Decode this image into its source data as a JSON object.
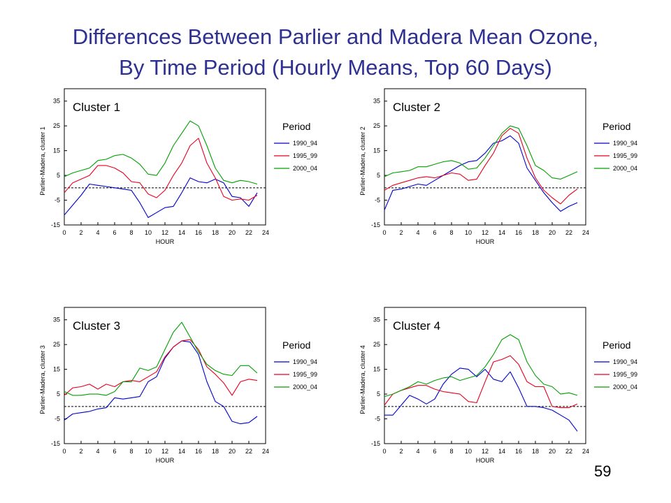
{
  "slide": {
    "title_line1": "Differences Between Parlier and Madera Mean Ozone,",
    "title_line2": "By Time Period (Hourly Means, Top 60 Days)",
    "page_number": "59"
  },
  "colors": {
    "1990_94": "#0000cc",
    "1995_99": "#e8001e",
    "2000_04": "#00a000",
    "reference_line": "#000000"
  },
  "chart_data": [
    {
      "type": "line",
      "title": "Cluster 1",
      "xlabel": "HOUR",
      "ylabel": "Parlier-Madera, cluster 1",
      "xlim": [
        0,
        24
      ],
      "ylim": [
        -15,
        40
      ],
      "xticks": [
        0,
        2,
        4,
        6,
        8,
        10,
        12,
        14,
        16,
        18,
        20,
        22,
        24
      ],
      "yticks": [
        -15,
        -5,
        5,
        15,
        25,
        35
      ],
      "reference_line_y": 0,
      "legend": {
        "title": "Period",
        "position": "right"
      },
      "x": [
        0,
        1,
        2,
        3,
        4,
        5,
        6,
        7,
        8,
        9,
        10,
        11,
        12,
        13,
        14,
        15,
        16,
        17,
        18,
        19,
        20,
        21,
        22,
        23
      ],
      "series": [
        {
          "name": "1990_94",
          "values": [
            -11,
            -7,
            -3,
            1.5,
            1,
            0.5,
            0,
            -0.5,
            -1,
            -6,
            -12,
            -10,
            -8,
            -7.5,
            -2,
            4,
            2.5,
            2,
            3.5,
            2,
            -3.5,
            -4,
            -7.5,
            -2
          ]
        },
        {
          "name": "1995_99",
          "values": [
            -2,
            2,
            3.5,
            5,
            9,
            9,
            8,
            6,
            2.5,
            2,
            -2.5,
            -4,
            -1,
            5,
            10,
            17,
            20,
            10,
            4,
            -3.5,
            -5,
            -4.5,
            -5,
            -3
          ]
        },
        {
          "name": "2000_04",
          "values": [
            4.5,
            6,
            7,
            8,
            11,
            11.5,
            13,
            13.5,
            12,
            9.5,
            5.5,
            5,
            10,
            17,
            22,
            27,
            25,
            17,
            8,
            3,
            2,
            3,
            2.5,
            1.5
          ]
        }
      ]
    },
    {
      "type": "line",
      "title": "Cluster 2",
      "xlabel": "HOUR",
      "ylabel": "Parlier-Madera, cluster 2",
      "xlim": [
        0,
        24
      ],
      "ylim": [
        -15,
        40
      ],
      "xticks": [
        0,
        2,
        4,
        6,
        8,
        10,
        12,
        14,
        16,
        18,
        20,
        22,
        24
      ],
      "yticks": [
        -15,
        -5,
        5,
        15,
        25,
        35
      ],
      "reference_line_y": 0,
      "legend": {
        "title": "Period",
        "position": "right"
      },
      "x": [
        0,
        1,
        2,
        3,
        4,
        5,
        6,
        7,
        8,
        9,
        10,
        11,
        12,
        13,
        14,
        15,
        16,
        17,
        18,
        19,
        20,
        21,
        22,
        23
      ],
      "series": [
        {
          "name": "1990_94",
          "values": [
            -9,
            -1,
            -0.5,
            0.5,
            1.5,
            1,
            3,
            5,
            7,
            9,
            10.5,
            11,
            14,
            18,
            19,
            21,
            18,
            8,
            3,
            -2,
            -6,
            -9.5,
            -7.5,
            -6
          ]
        },
        {
          "name": "1995_99",
          "values": [
            -1,
            1,
            2,
            3,
            4,
            4.5,
            4,
            5,
            6,
            5.5,
            3,
            3.5,
            9,
            14,
            21,
            24,
            22,
            12,
            4,
            -1,
            -4,
            -6.5,
            -3,
            -0.5
          ]
        },
        {
          "name": "2000_04",
          "values": [
            4.5,
            6,
            6.5,
            7,
            8.5,
            8.5,
            9.5,
            10.5,
            11,
            10,
            7.5,
            8,
            12,
            17,
            22,
            25,
            24,
            17,
            9,
            7,
            4,
            3.5,
            5,
            6.5
          ]
        }
      ]
    },
    {
      "type": "line",
      "title": "Cluster 3",
      "xlabel": "HOUR",
      "ylabel": "Parlier-Madera, cluster 3",
      "xlim": [
        0,
        24
      ],
      "ylim": [
        -15,
        40
      ],
      "xticks": [
        0,
        2,
        4,
        6,
        8,
        10,
        12,
        14,
        16,
        18,
        20,
        22,
        24
      ],
      "yticks": [
        -15,
        -5,
        5,
        15,
        25,
        35
      ],
      "reference_line_y": 0,
      "legend": {
        "title": "Period",
        "position": "right"
      },
      "x": [
        0,
        1,
        2,
        3,
        4,
        5,
        6,
        7,
        8,
        9,
        10,
        11,
        12,
        13,
        14,
        15,
        16,
        17,
        18,
        19,
        20,
        21,
        22,
        23
      ],
      "series": [
        {
          "name": "1990_94",
          "values": [
            -5.5,
            -3,
            -2.5,
            -2,
            -1,
            -0.5,
            3.5,
            3,
            3.5,
            4,
            10,
            12,
            19.5,
            24,
            26.5,
            26,
            21,
            10,
            2,
            0,
            -6,
            -7,
            -6.5,
            -4
          ]
        },
        {
          "name": "1995_99",
          "values": [
            4.5,
            7.5,
            8,
            9,
            7,
            9,
            8,
            10,
            10.5,
            10,
            12,
            14,
            20,
            24,
            26.5,
            27,
            23,
            16,
            13,
            9.5,
            4.5,
            10,
            11,
            10.5
          ]
        },
        {
          "name": "2000_04",
          "values": [
            6,
            4.5,
            4.5,
            5,
            5,
            4.5,
            6,
            10,
            10,
            15.5,
            14.5,
            16,
            23,
            30,
            34,
            28,
            22,
            17,
            14.5,
            13,
            12.5,
            16.5,
            16.5,
            13.5
          ]
        }
      ]
    },
    {
      "type": "line",
      "title": "Cluster 4",
      "xlabel": "HOUR",
      "ylabel": "Parlier-Madera, cluster 4",
      "xlim": [
        0,
        24
      ],
      "ylim": [
        -15,
        40
      ],
      "xticks": [
        0,
        2,
        4,
        6,
        8,
        10,
        12,
        14,
        16,
        18,
        20,
        22,
        24
      ],
      "yticks": [
        -15,
        -5,
        5,
        15,
        25,
        35
      ],
      "reference_line_y": 0,
      "legend": {
        "title": "Period",
        "position": "right"
      },
      "x": [
        0,
        1,
        2,
        3,
        4,
        5,
        6,
        7,
        8,
        9,
        10,
        11,
        12,
        13,
        14,
        15,
        16,
        17,
        18,
        19,
        20,
        21,
        22,
        23
      ],
      "series": [
        {
          "name": "1990_94",
          "values": [
            -3.5,
            -3.5,
            0.5,
            4.5,
            3,
            1,
            3,
            9,
            13,
            15.5,
            15,
            12,
            15,
            11,
            10,
            14,
            7.5,
            0,
            0,
            -0.5,
            -1.5,
            -3.5,
            -5.5,
            -10
          ]
        },
        {
          "name": "1995_99",
          "values": [
            0.5,
            5,
            6.5,
            7.5,
            8.5,
            8.5,
            7,
            6,
            5.5,
            5,
            2,
            1.5,
            10,
            18,
            19,
            20.5,
            17,
            10,
            8,
            8,
            0,
            -0.5,
            -0.5,
            1
          ]
        },
        {
          "name": "2000_04",
          "values": [
            4,
            5,
            6.5,
            8,
            10,
            9,
            10.5,
            11.5,
            12,
            10.5,
            11.5,
            12.5,
            16,
            21,
            27,
            29,
            27,
            18,
            12.5,
            9,
            8,
            5,
            5.5,
            4.5
          ]
        }
      ]
    }
  ]
}
